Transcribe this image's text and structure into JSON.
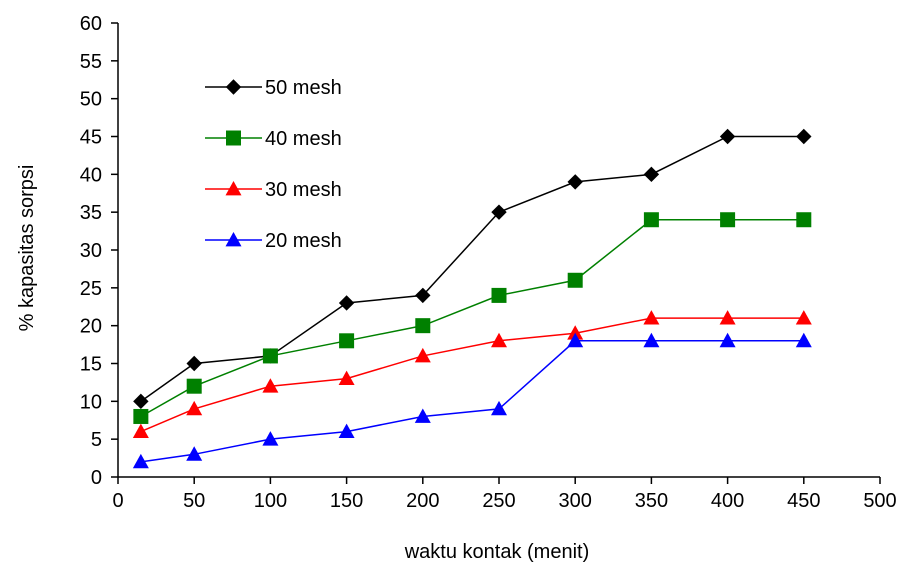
{
  "chart_data": {
    "type": "line",
    "title": "",
    "xlabel": "waktu kontak (menit)",
    "ylabel": "% kapasitas sorpsi",
    "xlim": [
      0,
      500
    ],
    "ylim": [
      0,
      60
    ],
    "x_ticks": [
      0,
      50,
      100,
      150,
      200,
      250,
      300,
      350,
      400,
      450,
      500
    ],
    "y_ticks": [
      0,
      5,
      10,
      15,
      20,
      25,
      30,
      35,
      40,
      45,
      50,
      55,
      60
    ],
    "grid": false,
    "legend_position": "top-left",
    "x": [
      15,
      50,
      100,
      150,
      200,
      250,
      300,
      350,
      400,
      450
    ],
    "series": [
      {
        "name": "50 mesh",
        "color": "#000000",
        "marker": "diamond",
        "values": [
          10,
          15,
          16,
          23,
          24,
          35,
          39,
          40,
          45,
          45
        ]
      },
      {
        "name": "40 mesh",
        "color": "#008000",
        "marker": "square",
        "values": [
          8,
          12,
          16,
          18,
          20,
          24,
          26,
          34,
          34,
          34
        ]
      },
      {
        "name": "30 mesh",
        "color": "#ff0000",
        "marker": "triangle",
        "values": [
          6,
          9,
          12,
          13,
          16,
          18,
          19,
          21,
          21,
          21
        ]
      },
      {
        "name": "20 mesh",
        "color": "#0000ff",
        "marker": "triangle",
        "values": [
          2,
          3,
          5,
          6,
          8,
          9,
          18,
          18,
          18,
          18
        ]
      }
    ]
  }
}
